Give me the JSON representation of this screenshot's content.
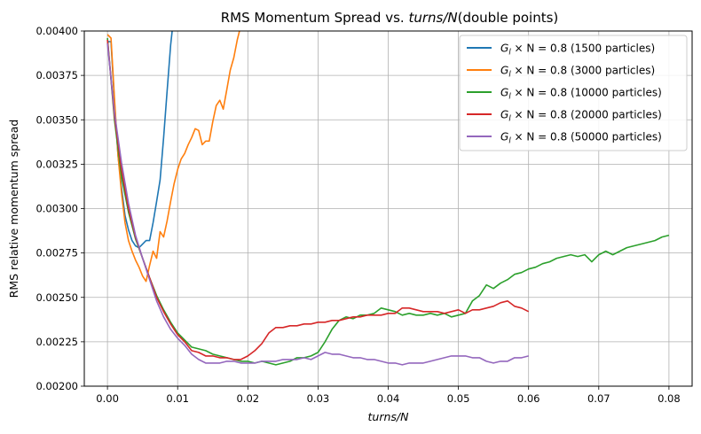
{
  "chart_data": {
    "type": "line",
    "title_prefix": "RMS Momentum Spread vs. ",
    "title_italic": "turns/N",
    "title_suffix": "(double points)",
    "xlabel": "turns/N",
    "ylabel": "RMS relative momentum spread",
    "xlim": [
      -0.0033,
      0.0833
    ],
    "ylim": [
      0.002,
      0.004
    ],
    "xticks": [
      0.0,
      0.01,
      0.02,
      0.03,
      0.04,
      0.05,
      0.06,
      0.07,
      0.08
    ],
    "xtick_labels": [
      "0.00",
      "0.01",
      "0.02",
      "0.03",
      "0.04",
      "0.05",
      "0.06",
      "0.07",
      "0.08"
    ],
    "yticks": [
      0.002,
      0.00225,
      0.0025,
      0.00275,
      0.003,
      0.00325,
      0.0035,
      0.00375,
      0.004
    ],
    "ytick_labels": [
      "0.00200",
      "0.00225",
      "0.00250",
      "0.00275",
      "0.00300",
      "0.00325",
      "0.00350",
      "0.00375",
      "0.00400"
    ],
    "grid": true,
    "legend_position": "top-right",
    "legend_math_prefix": "G",
    "legend_math_sub": "l",
    "legend_math_rest": " × N = 0.8",
    "series": [
      {
        "name": "(1500 particles)",
        "color": "#1f77b4",
        "x": [
          0.0,
          0.0005,
          0.001,
          0.0015,
          0.002,
          0.0025,
          0.003,
          0.0035,
          0.004,
          0.0045,
          0.005,
          0.0055,
          0.006,
          0.0065,
          0.007,
          0.0075,
          0.008,
          0.0085,
          0.009,
          0.0095
        ],
        "y": [
          0.00394,
          0.00394,
          0.0036,
          0.0033,
          0.00312,
          0.00296,
          0.00288,
          0.00282,
          0.00279,
          0.00278,
          0.0028,
          0.00282,
          0.00282,
          0.00292,
          0.00304,
          0.00316,
          0.0034,
          0.00366,
          0.00392,
          0.0041
        ]
      },
      {
        "name": "(3000 particles)",
        "color": "#ff7f0e",
        "x": [
          0.0,
          0.0005,
          0.001,
          0.0015,
          0.002,
          0.0025,
          0.003,
          0.0035,
          0.004,
          0.0045,
          0.005,
          0.0055,
          0.006,
          0.0065,
          0.007,
          0.0075,
          0.008,
          0.0085,
          0.009,
          0.0095,
          0.01,
          0.0105,
          0.011,
          0.0115,
          0.012,
          0.0125,
          0.013,
          0.0135,
          0.014,
          0.0145,
          0.015,
          0.0155,
          0.016,
          0.0165,
          0.017,
          0.0175,
          0.018,
          0.0185,
          0.019
        ],
        "y": [
          0.00398,
          0.00396,
          0.00362,
          0.0033,
          0.00309,
          0.00292,
          0.00282,
          0.00276,
          0.00271,
          0.00267,
          0.00262,
          0.00259,
          0.00268,
          0.00276,
          0.00272,
          0.00287,
          0.00284,
          0.00293,
          0.00304,
          0.00314,
          0.00322,
          0.00328,
          0.00331,
          0.00336,
          0.0034,
          0.00345,
          0.00344,
          0.00336,
          0.00338,
          0.00338,
          0.00349,
          0.00358,
          0.00361,
          0.00356,
          0.00367,
          0.00378,
          0.00385,
          0.00395,
          0.00403
        ]
      },
      {
        "name": "(10000 particles)",
        "color": "#2ca02c",
        "x": [
          0.0,
          0.001,
          0.002,
          0.003,
          0.004,
          0.005,
          0.006,
          0.007,
          0.008,
          0.009,
          0.01,
          0.011,
          0.012,
          0.013,
          0.014,
          0.015,
          0.016,
          0.017,
          0.018,
          0.019,
          0.02,
          0.021,
          0.022,
          0.023,
          0.024,
          0.025,
          0.026,
          0.027,
          0.028,
          0.029,
          0.03,
          0.031,
          0.032,
          0.033,
          0.034,
          0.035,
          0.036,
          0.037,
          0.038,
          0.039,
          0.04,
          0.041,
          0.042,
          0.043,
          0.044,
          0.045,
          0.046,
          0.047,
          0.048,
          0.049,
          0.05,
          0.051,
          0.052,
          0.053,
          0.054,
          0.055,
          0.056,
          0.057,
          0.058,
          0.059,
          0.06,
          0.061,
          0.062,
          0.063,
          0.064,
          0.065,
          0.066,
          0.067,
          0.068,
          0.069,
          0.07,
          0.071,
          0.072,
          0.073,
          0.074,
          0.075,
          0.076,
          0.077,
          0.078,
          0.079,
          0.08
        ],
        "y": [
          0.00396,
          0.0035,
          0.00318,
          0.00298,
          0.00283,
          0.00272,
          0.00261,
          0.00251,
          0.00243,
          0.00236,
          0.0023,
          0.00226,
          0.00222,
          0.00221,
          0.0022,
          0.00218,
          0.00217,
          0.00216,
          0.00215,
          0.00214,
          0.00214,
          0.00213,
          0.00214,
          0.00213,
          0.00212,
          0.00213,
          0.00214,
          0.00216,
          0.00216,
          0.00217,
          0.00219,
          0.00225,
          0.00232,
          0.00237,
          0.00239,
          0.00238,
          0.0024,
          0.0024,
          0.00241,
          0.00244,
          0.00243,
          0.00242,
          0.0024,
          0.00241,
          0.0024,
          0.0024,
          0.00241,
          0.0024,
          0.00241,
          0.00239,
          0.0024,
          0.00241,
          0.00248,
          0.00251,
          0.00257,
          0.00255,
          0.00258,
          0.0026,
          0.00263,
          0.00264,
          0.00266,
          0.00267,
          0.00269,
          0.0027,
          0.00272,
          0.00273,
          0.00274,
          0.00273,
          0.00274,
          0.0027,
          0.00274,
          0.00276,
          0.00274,
          0.00276,
          0.00278,
          0.00279,
          0.0028,
          0.00281,
          0.00282,
          0.00284,
          0.00285
        ]
      },
      {
        "name": "(20000 particles)",
        "color": "#d62728",
        "x": [
          0.0,
          0.001,
          0.002,
          0.003,
          0.004,
          0.005,
          0.006,
          0.007,
          0.008,
          0.009,
          0.01,
          0.011,
          0.012,
          0.013,
          0.014,
          0.015,
          0.016,
          0.017,
          0.018,
          0.019,
          0.02,
          0.021,
          0.022,
          0.023,
          0.024,
          0.025,
          0.026,
          0.027,
          0.028,
          0.029,
          0.03,
          0.031,
          0.032,
          0.033,
          0.034,
          0.035,
          0.036,
          0.037,
          0.038,
          0.039,
          0.04,
          0.041,
          0.042,
          0.043,
          0.044,
          0.045,
          0.046,
          0.047,
          0.048,
          0.049,
          0.05,
          0.051,
          0.052,
          0.053,
          0.054,
          0.055,
          0.056,
          0.057,
          0.058,
          0.059,
          0.06
        ],
        "y": [
          0.00395,
          0.00352,
          0.00322,
          0.003,
          0.00284,
          0.00272,
          0.00261,
          0.0025,
          0.00242,
          0.00235,
          0.00229,
          0.00225,
          0.0022,
          0.00219,
          0.00217,
          0.00217,
          0.00216,
          0.00216,
          0.00215,
          0.00215,
          0.00217,
          0.0022,
          0.00224,
          0.0023,
          0.00233,
          0.00233,
          0.00234,
          0.00234,
          0.00235,
          0.00235,
          0.00236,
          0.00236,
          0.00237,
          0.00237,
          0.00238,
          0.00239,
          0.00239,
          0.0024,
          0.0024,
          0.0024,
          0.00241,
          0.00241,
          0.00244,
          0.00244,
          0.00243,
          0.00242,
          0.00242,
          0.00242,
          0.00241,
          0.00242,
          0.00243,
          0.00241,
          0.00243,
          0.00243,
          0.00244,
          0.00245,
          0.00247,
          0.00248,
          0.00245,
          0.00244,
          0.00242
        ]
      },
      {
        "name": "(50000 particles)",
        "color": "#9467bd",
        "x": [
          0.0,
          0.001,
          0.002,
          0.003,
          0.004,
          0.005,
          0.006,
          0.007,
          0.008,
          0.009,
          0.01,
          0.011,
          0.012,
          0.013,
          0.014,
          0.015,
          0.016,
          0.017,
          0.018,
          0.019,
          0.02,
          0.021,
          0.022,
          0.023,
          0.024,
          0.025,
          0.026,
          0.027,
          0.028,
          0.029,
          0.03,
          0.031,
          0.032,
          0.033,
          0.034,
          0.035,
          0.036,
          0.037,
          0.038,
          0.039,
          0.04,
          0.041,
          0.042,
          0.043,
          0.044,
          0.045,
          0.046,
          0.047,
          0.048,
          0.049,
          0.05,
          0.051,
          0.052,
          0.053,
          0.054,
          0.055,
          0.056,
          0.057,
          0.058,
          0.059,
          0.06
        ],
        "y": [
          0.00393,
          0.00354,
          0.00326,
          0.00303,
          0.00285,
          0.00272,
          0.0026,
          0.00248,
          0.00239,
          0.00232,
          0.00227,
          0.00223,
          0.00218,
          0.00215,
          0.00213,
          0.00213,
          0.00213,
          0.00214,
          0.00214,
          0.00213,
          0.00213,
          0.00213,
          0.00214,
          0.00214,
          0.00214,
          0.00215,
          0.00215,
          0.00215,
          0.00216,
          0.00215,
          0.00217,
          0.00219,
          0.00218,
          0.00218,
          0.00217,
          0.00216,
          0.00216,
          0.00215,
          0.00215,
          0.00214,
          0.00213,
          0.00213,
          0.00212,
          0.00213,
          0.00213,
          0.00213,
          0.00214,
          0.00215,
          0.00216,
          0.00217,
          0.00217,
          0.00217,
          0.00216,
          0.00216,
          0.00214,
          0.00213,
          0.00214,
          0.00214,
          0.00216,
          0.00216,
          0.00217
        ]
      }
    ]
  }
}
